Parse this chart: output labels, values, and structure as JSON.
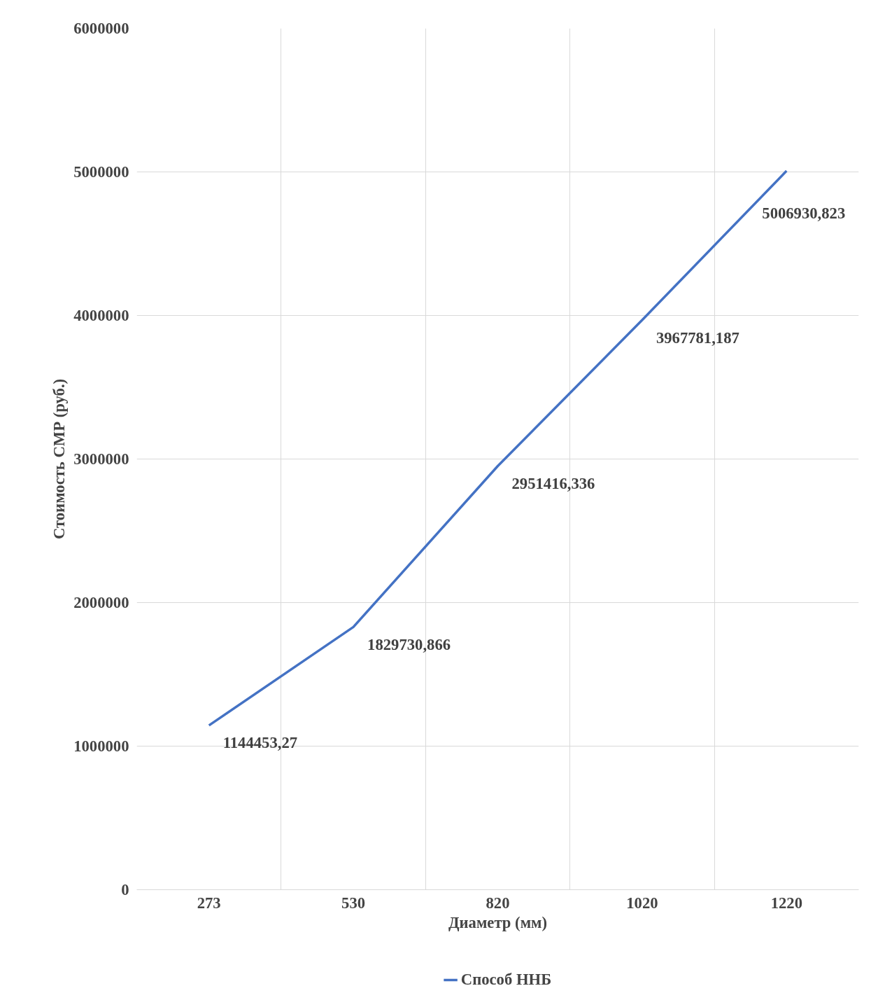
{
  "chart_data": {
    "type": "line",
    "xlabel": "Диаметр (мм)",
    "ylabel": "Стоимость СМР (руб.)",
    "categories": [
      "273",
      "530",
      "820",
      "1020",
      "1220"
    ],
    "series": [
      {
        "name": "Способ ННБ",
        "color": "#4472c4",
        "values": [
          1144453.27,
          1829730.866,
          2951416.336,
          3967781.187,
          5006930.823
        ],
        "value_labels": [
          "1144453,27",
          "1829730,866",
          "2951416,336",
          "3967781,187",
          "5006930,823"
        ]
      }
    ],
    "ylim": [
      0,
      6000000
    ],
    "yticks": [
      0,
      1000000,
      2000000,
      3000000,
      4000000,
      5000000,
      6000000
    ],
    "grid": true,
    "legend": "bottom",
    "marker": "none",
    "line_style": "solid"
  }
}
